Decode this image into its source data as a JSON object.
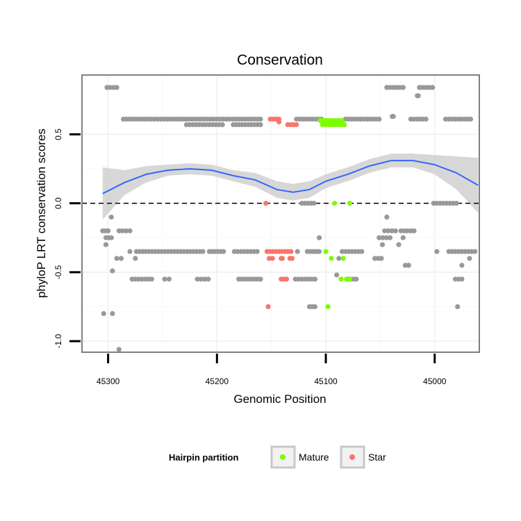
{
  "chart_data": {
    "type": "scatter",
    "title": "Conservation",
    "xlabel": "Genomic Position",
    "ylabel": "phyloP LRT conservation scores",
    "x_reversed": true,
    "xlim": [
      45324,
      44959
    ],
    "ylim": [
      -1.08,
      0.93
    ],
    "x_ticks": [
      45300,
      45200,
      45100,
      45000
    ],
    "y_ticks": [
      -1.0,
      -0.5,
      0.0,
      0.5
    ],
    "y_tick_labels": [
      "-1.0",
      "-0.5",
      "0.0",
      "0.5"
    ],
    "reference_line": {
      "y": 0,
      "style": "dashed",
      "color": "#000000"
    },
    "grid": true,
    "legend": {
      "title": "Hairpin partition",
      "position": "bottom",
      "entries": [
        {
          "label": "Mature",
          "color": "#7cfc00"
        },
        {
          "label": "Star",
          "color": "#f8766d"
        }
      ]
    },
    "colors": {
      "other": "#999999",
      "mature": "#7cfc00",
      "star": "#f8766d",
      "smooth": "#3366ff",
      "band": "#d3d3d3"
    },
    "series": [
      {
        "group": "other",
        "segments": [
          {
            "y": 0.84,
            "x": [
              [
                45301,
                45292
              ],
              [
                45044,
                45029
              ],
              [
                45014,
                45002
              ]
            ]
          },
          {
            "y": 0.78,
            "x": [
              [
                45016,
                45015
              ]
            ]
          },
          {
            "y": 0.61,
            "x": [
              [
                45286,
                45160
              ],
              [
                45127,
                45104
              ],
              [
                45082,
                45051
              ],
              [
                45022,
                45008
              ],
              [
                44990,
                44967
              ]
            ]
          },
          {
            "y": 0.63,
            "x": [
              [
                45039,
                45038
              ]
            ]
          },
          {
            "y": 0.57,
            "x": [
              [
                45228,
                45195
              ],
              [
                45185,
                45160
              ]
            ]
          },
          {
            "y": 0.0,
            "x": [
              [
                45122,
                45111
              ],
              [
                45001,
                44980
              ]
            ]
          },
          {
            "y": -0.2,
            "x": [
              [
                45305,
                45300
              ],
              [
                45290,
                45280
              ],
              [
                45046,
                45036
              ],
              [
                45031,
                45019
              ]
            ]
          },
          {
            "y": -0.25,
            "x": [
              [
                45302,
                45297
              ],
              [
                45051,
                45041
              ]
            ]
          },
          {
            "y": -0.35,
            "x": [
              [
                45274,
                45213
              ],
              [
                45207,
                45194
              ],
              [
                45184,
                45163
              ],
              [
                45114,
                45106
              ],
              [
                45085,
                45067
              ],
              [
                44987,
                44963
              ]
            ]
          },
          {
            "y": -0.4,
            "x": [
              [
                45292,
                45288
              ],
              [
                45055,
                45049
              ]
            ]
          },
          {
            "y": -0.45,
            "x": [
              [
                45027,
                45024
              ]
            ]
          },
          {
            "y": -0.55,
            "x": [
              [
                45278,
                45260
              ],
              [
                45248,
                45244
              ],
              [
                45218,
                45208
              ],
              [
                45180,
                45160
              ],
              [
                45125,
                45110
              ],
              [
                45080,
                45072
              ],
              [
                44981,
                44975
              ]
            ]
          },
          {
            "y": -0.75,
            "x": [
              [
                45115,
                45110
              ]
            ]
          }
        ],
        "points": [
          [
            45297,
            -0.1
          ],
          [
            45302,
            -0.3
          ],
          [
            45296,
            -0.49
          ],
          [
            45304,
            -0.8
          ],
          [
            45296,
            -0.8
          ],
          [
            45290,
            -1.06
          ],
          [
            45280,
            -0.35
          ],
          [
            45275,
            -0.4
          ],
          [
            45126,
            -0.35
          ],
          [
            45106,
            -0.25
          ],
          [
            45088,
            -0.4
          ],
          [
            45090,
            -0.52
          ],
          [
            45044,
            -0.1
          ],
          [
            45033,
            -0.3
          ],
          [
            45029,
            -0.25
          ],
          [
            45024,
            -0.45
          ],
          [
            44998,
            -0.35
          ],
          [
            44975,
            -0.45
          ],
          [
            44979,
            -0.75
          ],
          [
            44968,
            -0.4
          ],
          [
            45117,
            -0.35
          ],
          [
            45048,
            -0.3
          ],
          [
            45128,
            -0.55
          ]
        ]
      },
      {
        "group": "star",
        "segments": [
          {
            "y": 0.61,
            "x": [
              [
                45151,
                45143
              ]
            ]
          },
          {
            "y": 0.57,
            "x": [
              [
                45135,
                45127
              ]
            ]
          },
          {
            "y": -0.35,
            "x": [
              [
                45154,
                45132
              ]
            ]
          },
          {
            "y": -0.4,
            "x": [
              [
                45152,
                45149
              ],
              [
                45141,
                45140
              ],
              [
                45133,
                45131
              ]
            ]
          },
          {
            "y": -0.55,
            "x": [
              [
                45141,
                45136
              ]
            ]
          }
        ],
        "points": [
          [
            45155,
            0.0
          ],
          [
            45153,
            -0.75
          ],
          [
            45143,
            0.59
          ]
        ]
      },
      {
        "group": "mature",
        "segments": [
          {
            "y": 0.6,
            "x": [
              [
                45105,
                45085
              ]
            ]
          },
          {
            "y": 0.57,
            "x": [
              [
                45103,
                45083
              ]
            ]
          }
        ],
        "points": [
          [
            45092,
            0.0
          ],
          [
            45078,
            0.0
          ],
          [
            45100,
            -0.35
          ],
          [
            45095,
            -0.4
          ],
          [
            45084,
            -0.4
          ],
          [
            45086,
            -0.55
          ],
          [
            45081,
            -0.55
          ],
          [
            45078,
            -0.55
          ],
          [
            45098,
            -0.75
          ]
        ]
      }
    ],
    "smooth": {
      "x": [
        45305,
        45285,
        45265,
        45245,
        45225,
        45205,
        45185,
        45165,
        45145,
        45130,
        45115,
        45100,
        45080,
        45060,
        45040,
        45020,
        45000,
        44980,
        44960
      ],
      "y": [
        0.07,
        0.15,
        0.21,
        0.24,
        0.25,
        0.24,
        0.2,
        0.17,
        0.1,
        0.08,
        0.1,
        0.16,
        0.21,
        0.27,
        0.31,
        0.31,
        0.28,
        0.22,
        0.13
      ],
      "lower": [
        -0.12,
        0.06,
        0.15,
        0.2,
        0.21,
        0.2,
        0.16,
        0.12,
        0.04,
        0.02,
        0.04,
        0.11,
        0.16,
        0.22,
        0.26,
        0.26,
        0.21,
        0.1,
        -0.07
      ],
      "upper": [
        0.26,
        0.24,
        0.27,
        0.28,
        0.29,
        0.28,
        0.24,
        0.22,
        0.16,
        0.14,
        0.16,
        0.21,
        0.26,
        0.32,
        0.36,
        0.36,
        0.35,
        0.34,
        0.33
      ]
    }
  }
}
